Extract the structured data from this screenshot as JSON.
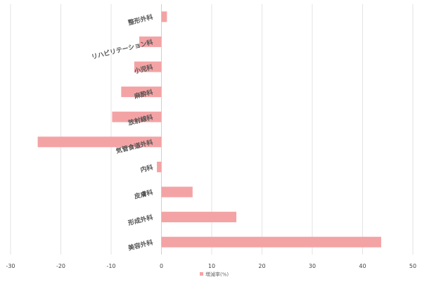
{
  "chart_data": {
    "type": "bar",
    "orientation": "horizontal",
    "categories": [
      "整形外科",
      "リハビリテーション科",
      "小児科",
      "麻酔科",
      "放射線科",
      "気管食道外科",
      "内科",
      "皮膚科",
      "形成外科",
      "美容外科"
    ],
    "series": [
      {
        "name": "増減率(%)",
        "color": "#f4a3a5",
        "values": [
          1.1,
          -4.4,
          -5.4,
          -8.0,
          -9.8,
          -24.6,
          -0.9,
          6.2,
          14.9,
          43.7
        ]
      }
    ],
    "xlim": [
      -30,
      50
    ],
    "xticks": [
      "-30",
      "-20",
      "-10",
      "0",
      "10",
      "20",
      "30",
      "40",
      "50"
    ],
    "grid": true,
    "legend": "bottom",
    "title": "",
    "xlabel": "",
    "ylabel": ""
  }
}
